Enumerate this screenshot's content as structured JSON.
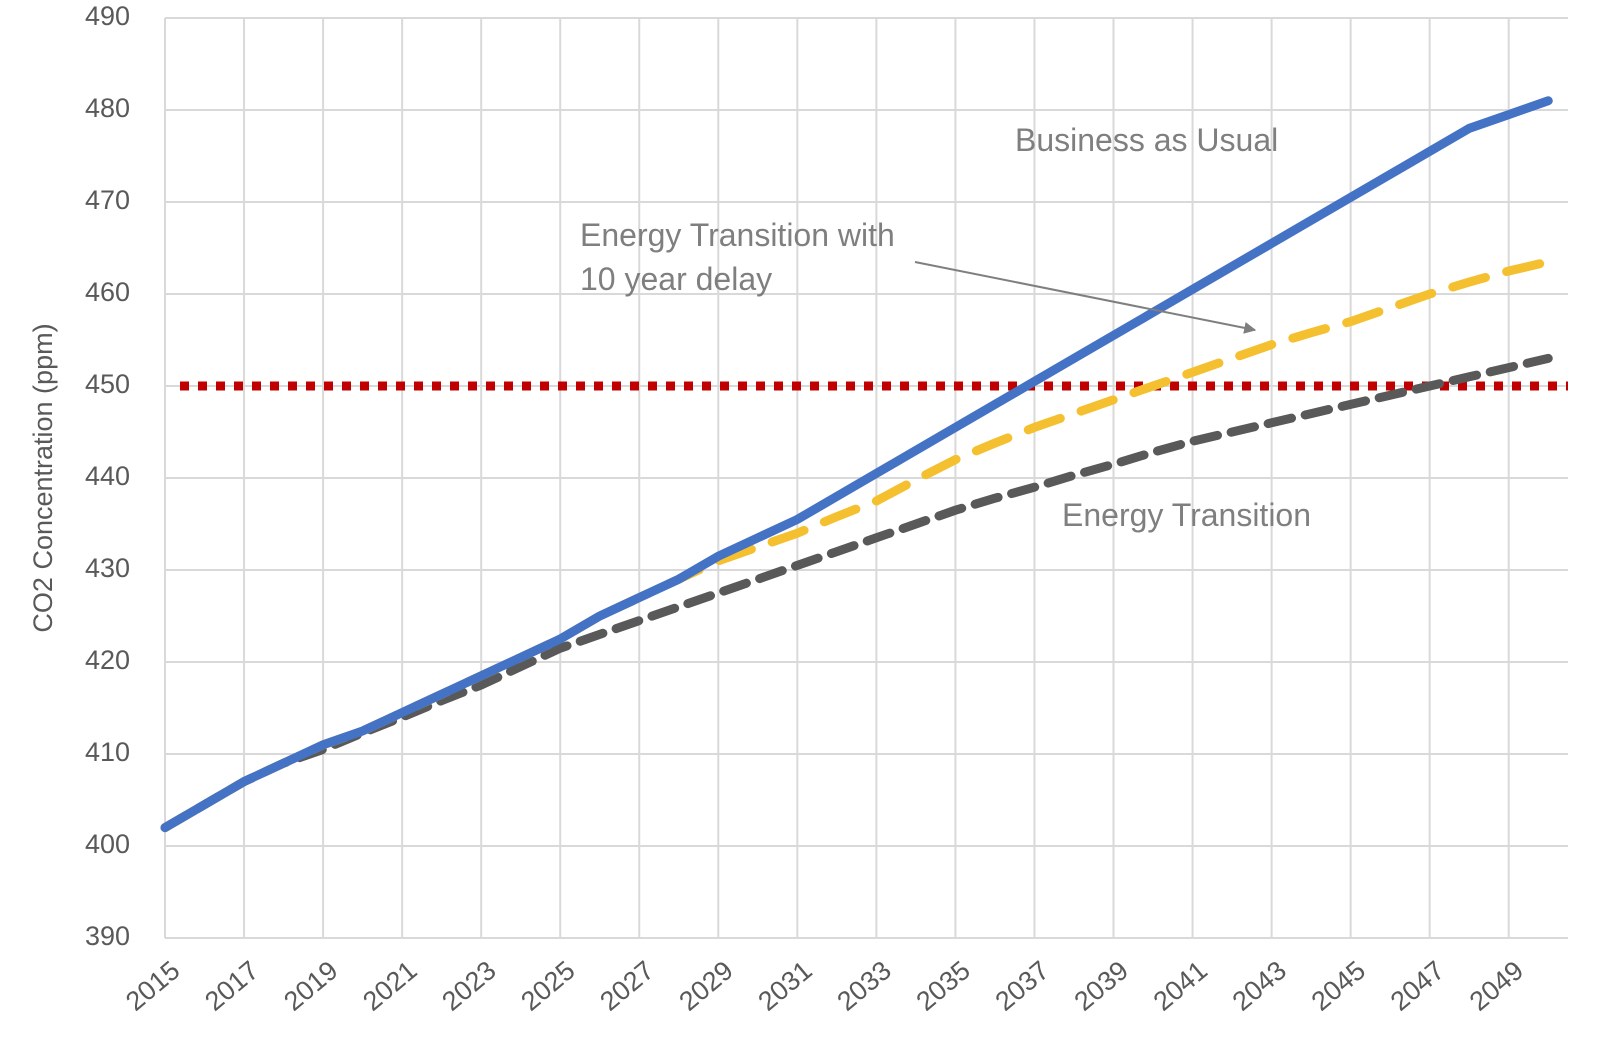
{
  "chart_data": {
    "type": "line",
    "y_label": "CO2 Concentration (ppm)",
    "x": [
      2015,
      2016,
      2017,
      2018,
      2019,
      2020,
      2021,
      2022,
      2023,
      2024,
      2025,
      2026,
      2027,
      2028,
      2029,
      2030,
      2031,
      2032,
      2033,
      2034,
      2035,
      2036,
      2037,
      2038,
      2039,
      2040,
      2041,
      2042,
      2043,
      2044,
      2045,
      2046,
      2047,
      2048,
      2049,
      2050
    ],
    "series": [
      {
        "name": "Business as Usual",
        "color": "#4472c4",
        "dash": "solid",
        "values": [
          402,
          404.5,
          407,
          409,
          411,
          412.5,
          414.5,
          416.5,
          418.5,
          420.5,
          422.5,
          425,
          427,
          429,
          431.5,
          433.5,
          435.5,
          438,
          440.5,
          443,
          445.5,
          448,
          450.5,
          453,
          455.5,
          458,
          460.5,
          463,
          465.5,
          468,
          470.5,
          473,
          475.5,
          478,
          479.5,
          481
        ]
      },
      {
        "name": "Energy Transition with 10 year delay",
        "color": "#f5c02f",
        "dash": "long",
        "values": [
          402,
          404.5,
          407,
          409,
          411,
          412.5,
          414.5,
          416.5,
          418.5,
          420.5,
          422.5,
          425,
          427,
          429,
          431,
          432.5,
          434,
          435.8,
          437.5,
          439.8,
          442,
          443.8,
          445.5,
          447,
          448.5,
          450,
          451.5,
          453,
          454.5,
          455.8,
          457,
          458.5,
          460,
          461.3,
          462.5,
          463.5
        ]
      },
      {
        "name": "Energy Transition",
        "color": "#595959",
        "dash": "short",
        "values": [
          402,
          404.5,
          407,
          409,
          410.5,
          412.3,
          414,
          415.8,
          417.5,
          419.5,
          421.5,
          423,
          424.5,
          426,
          427.5,
          429,
          430.5,
          432,
          433.5,
          435,
          436.5,
          437.8,
          439,
          440.3,
          441.5,
          442.8,
          444,
          445,
          446,
          447,
          448,
          449,
          450,
          451,
          452,
          453
        ]
      }
    ],
    "reference_line": {
      "value": 450,
      "color": "#c00000"
    },
    "xlim": [
      2015,
      2050.5
    ],
    "xticks": [
      2015,
      2017,
      2019,
      2021,
      2023,
      2025,
      2027,
      2029,
      2031,
      2033,
      2035,
      2037,
      2039,
      2041,
      2043,
      2045,
      2047,
      2049
    ],
    "ylim": [
      390,
      490
    ],
    "yticks": [
      390,
      400,
      410,
      420,
      430,
      440,
      450,
      460,
      470,
      480,
      490
    ],
    "grid": true
  }
}
